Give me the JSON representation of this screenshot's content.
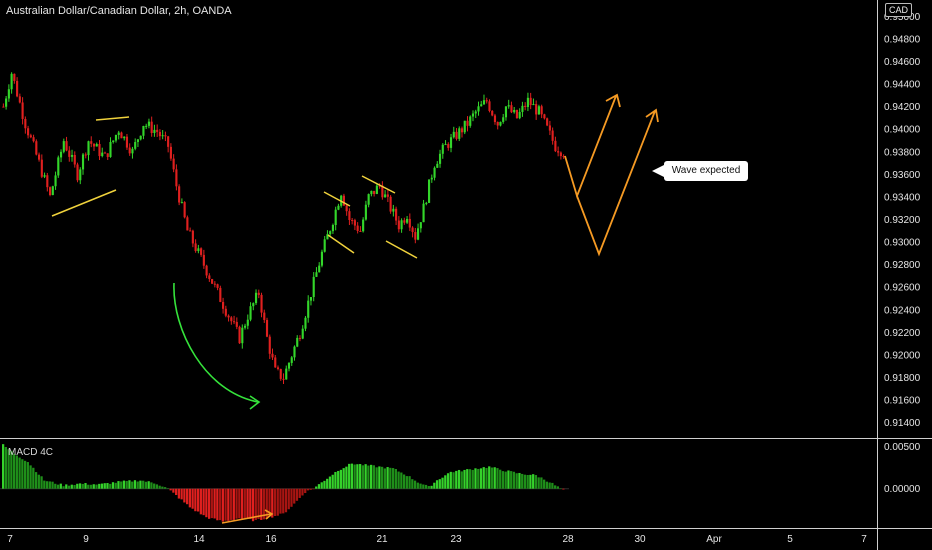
{
  "chart_title": "Australian Dollar/Canadian Dollar, 2h, OANDA",
  "currency_label": "CAD",
  "indicator_title": "MACD 4C",
  "annotation_text": "Wave expected",
  "colors": {
    "background": "#000000",
    "up_candle": "#33d62a",
    "down_candle": "#e0201f",
    "pattern_lines": "#f0d23c",
    "arrow_green": "#35e23b",
    "projection": "#f59a23",
    "axis_text": "#e6e6e6",
    "divider": "#cfcfcf"
  },
  "chart_data": [
    {
      "type": "candlestick",
      "x_tick_labels": [
        "7",
        "9",
        "14",
        "16",
        "21",
        "23",
        "28",
        "30",
        "Apr",
        "5",
        "7"
      ],
      "y_tick_labels": [
        "0.95000",
        "0.94800",
        "0.94600",
        "0.94400",
        "0.94200",
        "0.94000",
        "0.93800",
        "0.93600",
        "0.93400",
        "0.93200",
        "0.93000",
        "0.92800",
        "0.92600",
        "0.92400",
        "0.92200",
        "0.92000",
        "0.91800",
        "0.91600",
        "0.91400"
      ],
      "ylim": [
        0.913,
        0.951
      ],
      "price_path": [
        [
          0,
          0.942
        ],
        [
          3,
          0.945
        ],
        [
          8,
          0.9405
        ],
        [
          13,
          0.937
        ],
        [
          17,
          0.934
        ],
        [
          22,
          0.939
        ],
        [
          27,
          0.936
        ],
        [
          31,
          0.939
        ],
        [
          37,
          0.9375
        ],
        [
          42,
          0.94
        ],
        [
          47,
          0.938
        ],
        [
          51,
          0.9405
        ],
        [
          56,
          0.9398
        ],
        [
          60,
          0.9385
        ],
        [
          63,
          0.935
        ],
        [
          67,
          0.931
        ],
        [
          72,
          0.9285
        ],
        [
          77,
          0.926
        ],
        [
          82,
          0.9235
        ],
        [
          86,
          0.9215
        ],
        [
          89,
          0.9235
        ],
        [
          93,
          0.9255
        ],
        [
          96,
          0.9215
        ],
        [
          99,
          0.9185
        ],
        [
          102,
          0.918
        ],
        [
          105,
          0.92
        ],
        [
          108,
          0.922
        ],
        [
          112,
          0.9255
        ],
        [
          116,
          0.929
        ],
        [
          120,
          0.932
        ],
        [
          123,
          0.9345
        ],
        [
          126,
          0.932
        ],
        [
          130,
          0.931
        ],
        [
          133,
          0.934
        ],
        [
          137,
          0.935
        ],
        [
          141,
          0.933
        ],
        [
          144,
          0.9315
        ],
        [
          147,
          0.9325
        ],
        [
          150,
          0.9305
        ],
        [
          153,
          0.933
        ],
        [
          157,
          0.937
        ],
        [
          161,
          0.9385
        ],
        [
          165,
          0.9395
        ],
        [
          169,
          0.9405
        ],
        [
          172,
          0.9415
        ],
        [
          176,
          0.9425
        ],
        [
          180,
          0.9405
        ],
        [
          183,
          0.942
        ],
        [
          187,
          0.941
        ],
        [
          191,
          0.9425
        ],
        [
          195,
          0.9415
        ],
        [
          198,
          0.94
        ],
        [
          201,
          0.9385
        ],
        [
          204,
          0.938
        ]
      ],
      "candle_count": 205,
      "projection_path": [
        [
          0.938,
          0.9345
        ],
        [
          0.9345,
          0.9435
        ],
        [
          0.9435,
          0.9295
        ],
        [
          0.9295,
          0.9425
        ]
      ]
    },
    {
      "type": "bar",
      "series_name": "MACD 4C",
      "y_tick_labels": [
        "0.00500",
        "0.00000"
      ],
      "ylim": [
        -0.0042,
        0.0052
      ],
      "histogram_path": [
        [
          0,
          0.0052
        ],
        [
          4,
          0.0042
        ],
        [
          9,
          0.0032
        ],
        [
          15,
          0.001
        ],
        [
          22,
          0.0004
        ],
        [
          28,
          0.0006
        ],
        [
          35,
          0.0005
        ],
        [
          42,
          0.0008
        ],
        [
          50,
          0.001
        ],
        [
          56,
          0.0006
        ],
        [
          60,
          0.0
        ],
        [
          63,
          -0.0008
        ],
        [
          68,
          -0.0022
        ],
        [
          74,
          -0.0034
        ],
        [
          80,
          -0.0039
        ],
        [
          86,
          -0.0035
        ],
        [
          92,
          -0.0038
        ],
        [
          97,
          -0.0034
        ],
        [
          102,
          -0.003
        ],
        [
          106,
          -0.0018
        ],
        [
          110,
          -0.0004
        ],
        [
          113,
          0.0
        ],
        [
          117,
          0.001
        ],
        [
          122,
          0.0022
        ],
        [
          127,
          0.003
        ],
        [
          132,
          0.0028
        ],
        [
          137,
          0.0026
        ],
        [
          142,
          0.0024
        ],
        [
          147,
          0.0016
        ],
        [
          151,
          0.0008
        ],
        [
          155,
          0.0002
        ],
        [
          158,
          0.001
        ],
        [
          163,
          0.002
        ],
        [
          168,
          0.0022
        ],
        [
          172,
          0.0024
        ],
        [
          177,
          0.0026
        ],
        [
          182,
          0.0022
        ],
        [
          188,
          0.0018
        ],
        [
          194,
          0.0016
        ],
        [
          199,
          0.0008
        ],
        [
          202,
          0.0002
        ],
        [
          204,
          -0.0002
        ]
      ],
      "bar_count": 205
    }
  ]
}
